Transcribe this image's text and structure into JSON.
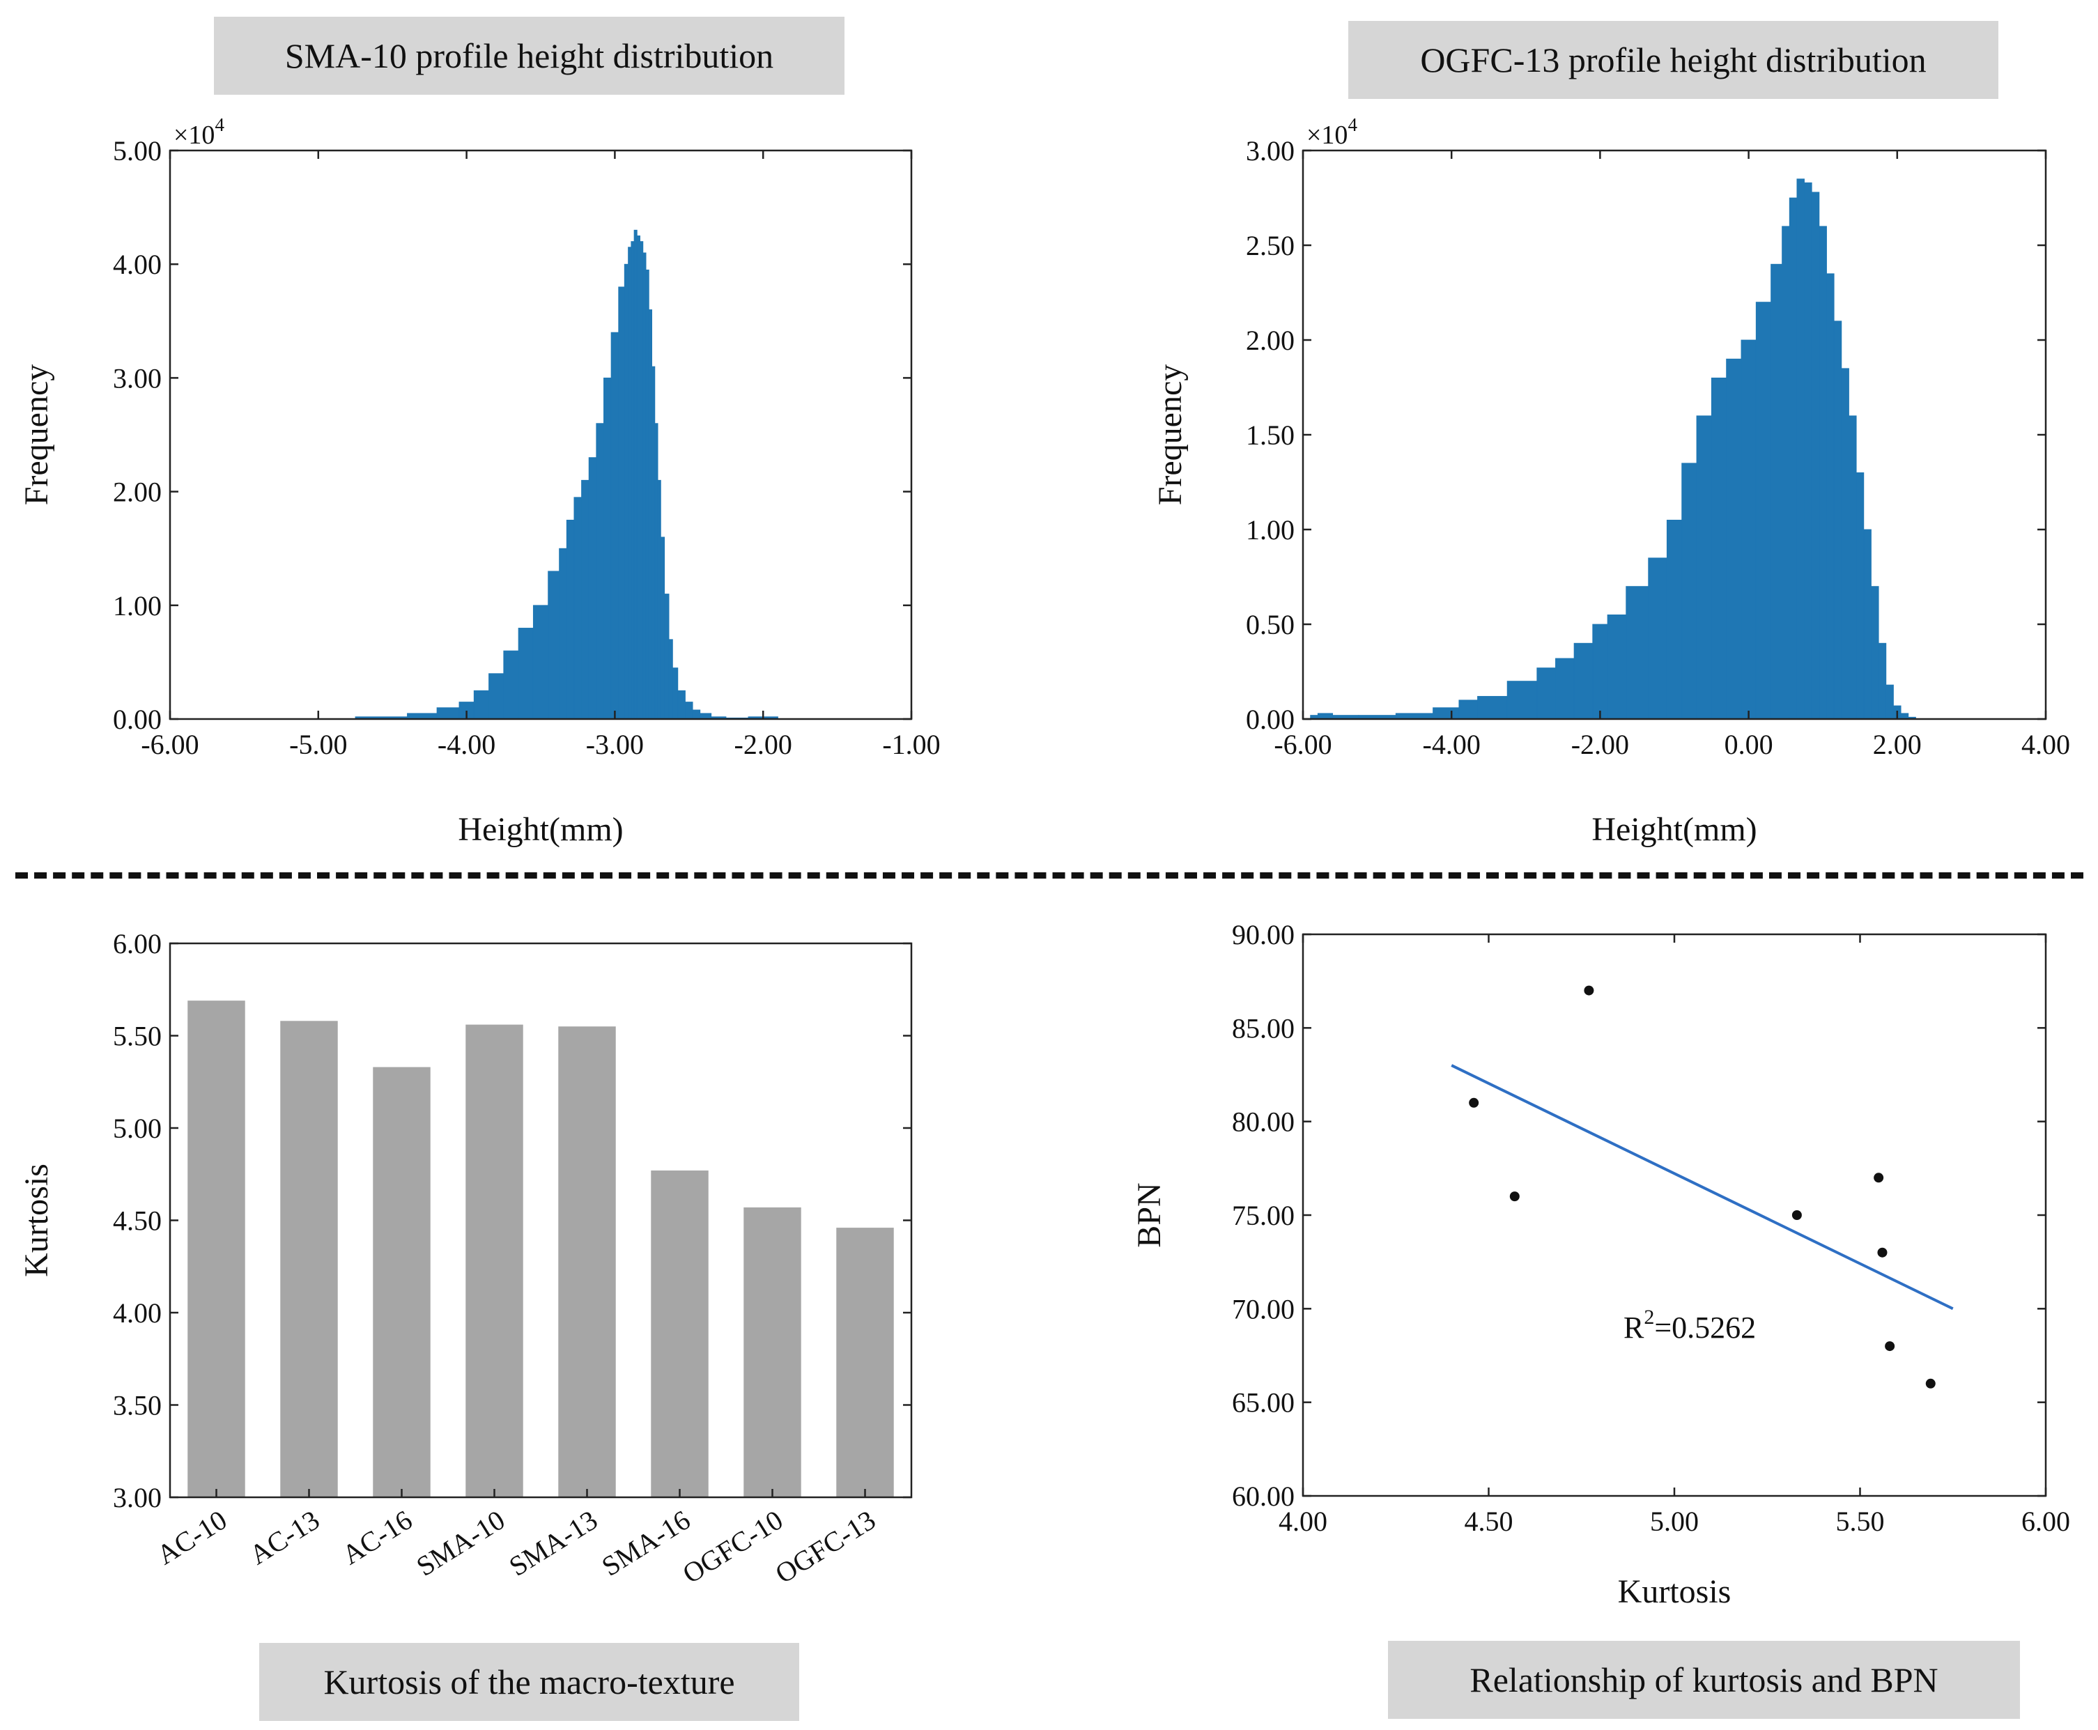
{
  "figure_titles": {
    "sma10_hist": "SMA-10 profile height distribution",
    "ogfc13_hist": "OGFC-13 profile height distribution",
    "kurtosis_bar": "Kurtosis of the macro-texture",
    "kurtosis_bpn": "Relationship of kurtosis  and BPN"
  },
  "colors": {
    "hist_fill": "#1f77b4",
    "bar_fill": "#a6a6a6",
    "fit_line": "#2e6fc4",
    "title_bg": "#d6d6d6"
  },
  "chart_data": [
    {
      "id": "sma10_hist",
      "type": "bar",
      "title": "SMA-10 profile height distribution",
      "xlabel": "Height(mm)",
      "ylabel": "Frequency",
      "y_multiplier": "×10",
      "y_exponent": "4",
      "xlim": [
        -6,
        -1
      ],
      "ylim": [
        0,
        5
      ],
      "xticks": [
        "-6.00",
        "-5.00",
        "-4.00",
        "-3.00",
        "-2.00",
        "-1.00"
      ],
      "yticks": [
        "0.00",
        "1.00",
        "2.00",
        "3.00",
        "4.00",
        "5.00"
      ],
      "x": [
        -5.0,
        -4.5,
        -4.3,
        -4.1,
        -4.0,
        -3.9,
        -3.8,
        -3.7,
        -3.6,
        -3.5,
        -3.4,
        -3.35,
        -3.3,
        -3.25,
        -3.2,
        -3.15,
        -3.1,
        -3.05,
        -3.0,
        -2.95,
        -2.92,
        -2.9,
        -2.88,
        -2.86,
        -2.84,
        -2.82,
        -2.8,
        -2.78,
        -2.76,
        -2.74,
        -2.72,
        -2.7,
        -2.68,
        -2.65,
        -2.62,
        -2.6,
        -2.55,
        -2.5,
        -2.45,
        -2.4,
        -2.3,
        -2.2,
        -2.0,
        -1.8
      ],
      "values": [
        0.0,
        0.02,
        0.05,
        0.1,
        0.15,
        0.25,
        0.4,
        0.6,
        0.8,
        1.0,
        1.3,
        1.5,
        1.75,
        1.95,
        2.1,
        2.3,
        2.6,
        3.0,
        3.4,
        3.8,
        4.0,
        4.15,
        4.2,
        4.3,
        4.25,
        4.2,
        4.1,
        3.95,
        3.6,
        3.1,
        2.6,
        2.1,
        1.6,
        1.1,
        0.7,
        0.45,
        0.25,
        0.15,
        0.08,
        0.05,
        0.02,
        0.01,
        0.02,
        0.0
      ]
    },
    {
      "id": "ogfc13_hist",
      "type": "bar",
      "title": "OGFC-13 profile height distribution",
      "xlabel": "Height(mm)",
      "ylabel": "Frequency",
      "y_multiplier": "×10",
      "y_exponent": "4",
      "xlim": [
        -6,
        4
      ],
      "ylim": [
        0,
        3
      ],
      "xticks": [
        "-6.00",
        "-4.00",
        "-2.00",
        "0.00",
        "2.00",
        "4.00"
      ],
      "yticks": [
        "0.00",
        "0.50",
        "1.00",
        "1.50",
        "2.00",
        "2.50",
        "3.00"
      ],
      "x": [
        -5.9,
        -5.7,
        -5.5,
        -5.0,
        -4.5,
        -4.0,
        -3.8,
        -3.5,
        -3.0,
        -2.7,
        -2.5,
        -2.2,
        -2.0,
        -1.8,
        -1.5,
        -1.2,
        -1.0,
        -0.8,
        -0.6,
        -0.4,
        -0.2,
        0.0,
        0.2,
        0.4,
        0.5,
        0.6,
        0.7,
        0.8,
        0.9,
        1.0,
        1.1,
        1.2,
        1.3,
        1.4,
        1.5,
        1.6,
        1.7,
        1.8,
        1.9,
        2.0,
        2.1,
        2.2,
        2.3
      ],
      "values": [
        0.02,
        0.03,
        0.02,
        0.02,
        0.03,
        0.06,
        0.1,
        0.12,
        0.2,
        0.27,
        0.32,
        0.4,
        0.5,
        0.55,
        0.7,
        0.85,
        1.05,
        1.35,
        1.6,
        1.8,
        1.9,
        2.0,
        2.2,
        2.4,
        2.6,
        2.75,
        2.85,
        2.83,
        2.78,
        2.6,
        2.35,
        2.1,
        1.85,
        1.6,
        1.3,
        1.0,
        0.7,
        0.4,
        0.18,
        0.07,
        0.03,
        0.01,
        0.0
      ]
    },
    {
      "id": "kurtosis_bar",
      "type": "bar",
      "title": "Kurtosis of the macro-texture",
      "xlabel": "",
      "ylabel": "Kurtosis",
      "categories": [
        "AC-10",
        "AC-13",
        "AC-16",
        "SMA-10",
        "SMA-13",
        "SMA-16",
        "OGFC-10",
        "OGFC-13"
      ],
      "values": [
        5.69,
        5.58,
        5.33,
        5.56,
        5.55,
        4.77,
        4.57,
        4.46
      ],
      "ylim": [
        3,
        6
      ],
      "yticks": [
        "3.00",
        "3.50",
        "4.00",
        "4.50",
        "5.00",
        "5.50",
        "6.00"
      ]
    },
    {
      "id": "kurtosis_bpn",
      "type": "scatter",
      "title": "Relationship of kurtosis  and BPN",
      "xlabel": "Kurtosis",
      "ylabel": "BPN",
      "x": [
        4.46,
        4.57,
        4.77,
        5.33,
        5.55,
        5.56,
        5.58,
        5.69
      ],
      "y": [
        81,
        76,
        87,
        75,
        77,
        73,
        68,
        66
      ],
      "xlim": [
        4,
        6
      ],
      "ylim": [
        60,
        90
      ],
      "xticks": [
        "4.00",
        "4.50",
        "5.00",
        "5.50",
        "6.00"
      ],
      "yticks": [
        "60.00",
        "65.00",
        "70.00",
        "75.00",
        "80.00",
        "85.00",
        "90.00"
      ],
      "fit_line": {
        "x": [
          4.4,
          5.75
        ],
        "y": [
          83.0,
          70.0
        ]
      },
      "annotation_prefix": "R",
      "annotation_sup": "2",
      "annotation_value": "=0.5262"
    }
  ]
}
